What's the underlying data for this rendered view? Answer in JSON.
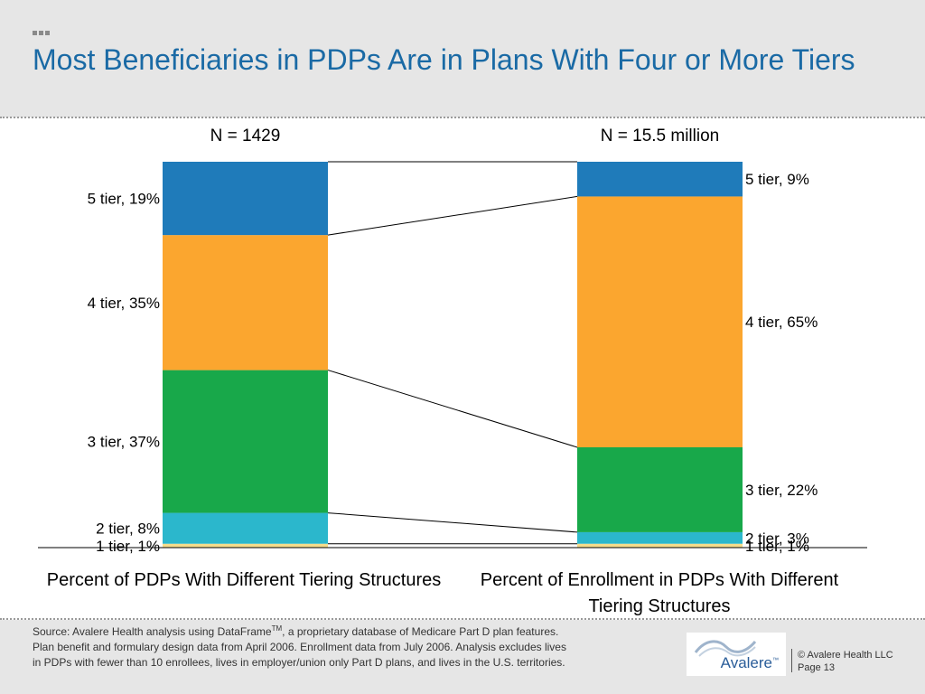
{
  "slide": {
    "title": "Most Beneficiaries in PDPs Are in Plans With Four or More Tiers"
  },
  "chart_data": {
    "type": "bar",
    "stacked": true,
    "percent_scale": true,
    "categories": [
      "Percent of PDPs With Different Tiering Structures",
      "Percent of Enrollment in PDPs With Different Tiering Structures"
    ],
    "n_labels": [
      "N = 1429",
      "N = 15.5 million"
    ],
    "series": [
      {
        "name": "1 tier",
        "values": [
          1,
          1
        ],
        "color": "#f5dc8c"
      },
      {
        "name": "2 tier",
        "values": [
          8,
          3
        ],
        "color": "#2bb7cc"
      },
      {
        "name": "3 tier",
        "values": [
          37,
          22
        ],
        "color": "#18a84a"
      },
      {
        "name": "4 tier",
        "values": [
          35,
          65
        ],
        "color": "#fba62f"
      },
      {
        "name": "5 tier",
        "values": [
          19,
          9
        ],
        "color": "#1f7bba"
      }
    ],
    "data_labels": [
      [
        "1 tier, 1%",
        "2 tier, 8%",
        "3 tier, 37%",
        "4 tier, 35%",
        "5 tier, 19%"
      ],
      [
        "1 tier, 1%",
        "2 tier, 3%",
        "3 tier, 22%",
        "4 tier, 65%",
        "5 tier, 9%"
      ]
    ],
    "connector_lines": true
  },
  "footer": {
    "source_line1_pre": "Source:  Avalere Health analysis using DataFrame",
    "source_tm": "TM",
    "source_line1_post": ", a proprietary database of Medicare Part D plan features.",
    "source_line2": "Plan benefit and formulary design data from April 2006.  Enrollment data from July 2006.  Analysis excludes lives",
    "source_line3": "in PDPs with fewer than 10 enrollees, lives in employer/union only Part D plans, and lives in the U.S. territories.",
    "logo_text": "Avalere",
    "logo_tm": "™",
    "copyright": "© Avalere Health LLC",
    "page": "Page 13"
  }
}
